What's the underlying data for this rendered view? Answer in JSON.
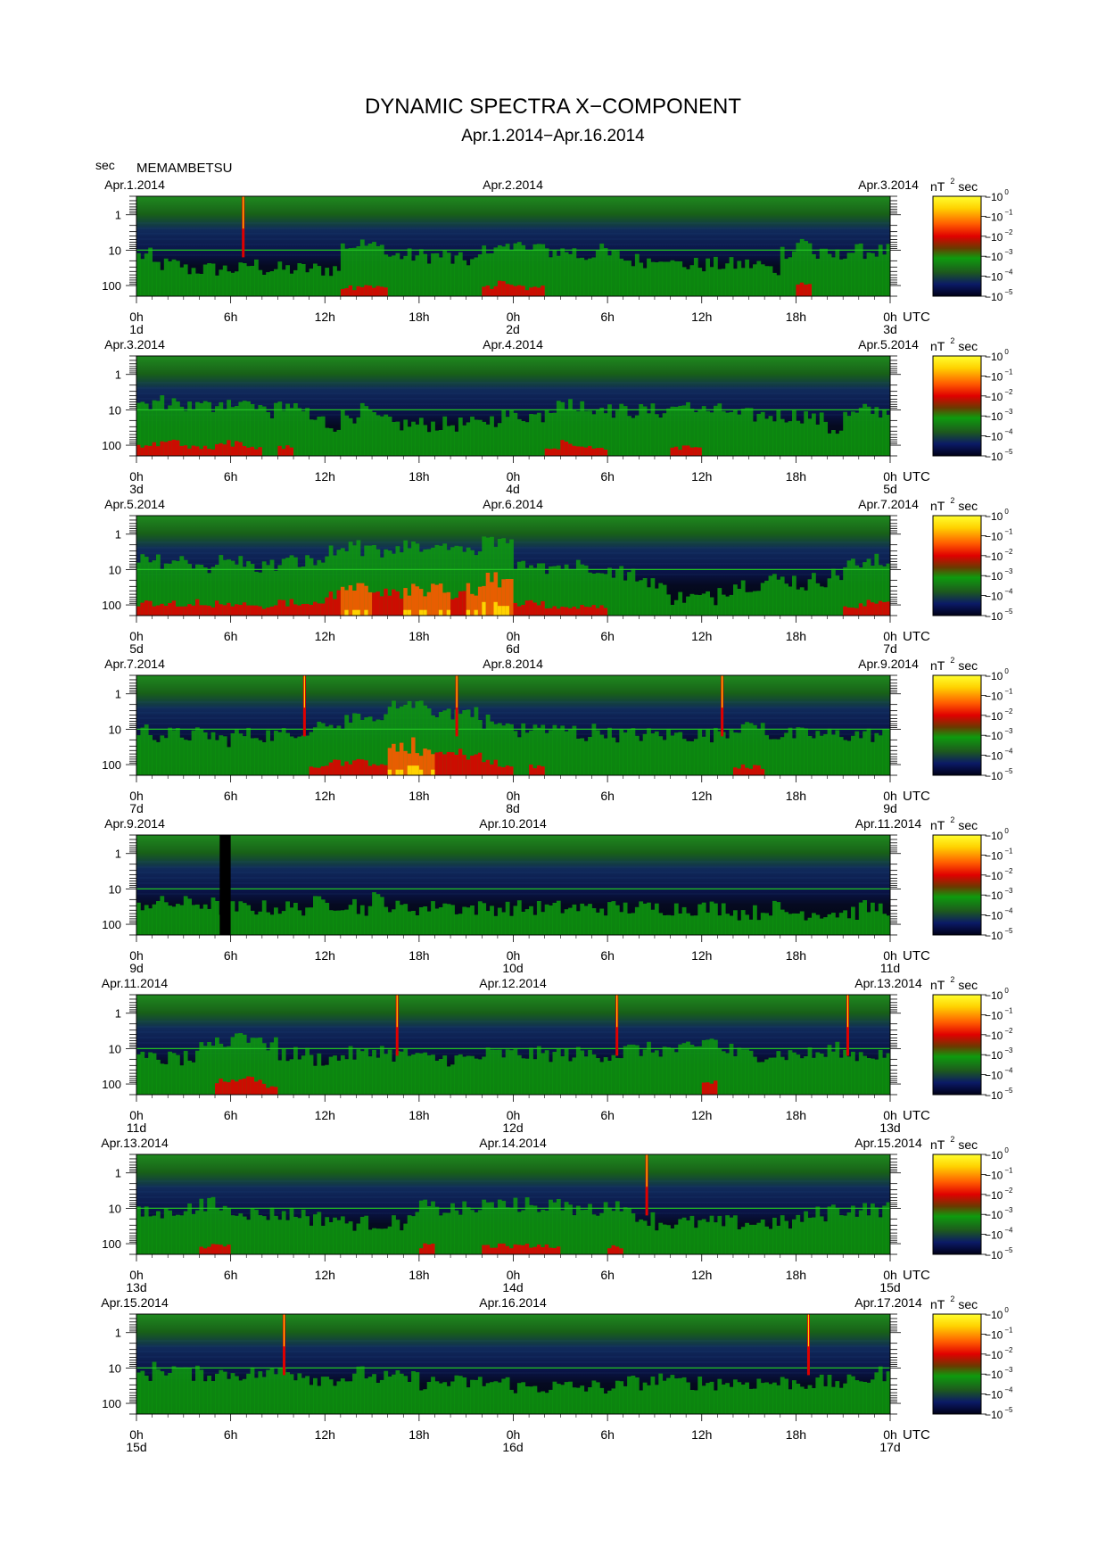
{
  "title": "DYNAMIC SPECTRA X−COMPONENT",
  "subtitle": "Apr.1.2014−Apr.16.2014",
  "station": "MEMAMBETSU",
  "yunit": "sec",
  "xunit": "UTC",
  "colorbar_unit": "nT",
  "colorbar_unit_exp": "2",
  "colorbar_unit_suffix": "sec",
  "y_tick_labels": [
    "1",
    "10",
    "100"
  ],
  "x_tick_labels": [
    "0h",
    "6h",
    "12h",
    "18h",
    "0h",
    "6h",
    "12h",
    "18h",
    "0h"
  ],
  "colorbar_labels": [
    {
      "base": "10",
      "exp": "0"
    },
    {
      "base": "10",
      "exp": "−1"
    },
    {
      "base": "10",
      "exp": "−2"
    },
    {
      "base": "10",
      "exp": "−3"
    },
    {
      "base": "10",
      "exp": "−4"
    },
    {
      "base": "10",
      "exp": "−5"
    }
  ],
  "colors": {
    "palette": [
      "#000018",
      "#0b1a66",
      "#1d5a1d",
      "#0e9b0e",
      "#e00000",
      "#ff5a00",
      "#ffd200",
      "#ffff30"
    ]
  },
  "chart_data": {
    "type": "heatmap",
    "title": "DYNAMIC SPECTRA X−COMPONENT",
    "subtitle": "Apr.1.2014−Apr.16.2014",
    "ylabel": "sec",
    "xlabel": "UTC",
    "y_scale": "log",
    "y_range_sec": [
      0.3,
      200
    ],
    "color_scale": "log",
    "color_range_nT2sec": [
      1e-05,
      1
    ],
    "panels": [
      {
        "dates": [
          "Apr.1.2014",
          "Apr.2.2014",
          "Apr.3.2014"
        ],
        "days": [
          "1d",
          "2d",
          "3d"
        ],
        "spikes_hours": [
          6.8
        ],
        "activity": [
          0.45,
          0.35,
          0.35,
          0.3,
          0.3,
          0.3,
          0.3,
          0.35,
          0.3,
          0.3,
          0.3,
          0.3,
          0.3,
          0.55,
          0.6,
          0.55,
          0.45,
          0.45,
          0.45,
          0.45,
          0.4,
          0.4,
          0.55,
          0.6,
          0.55,
          0.55,
          0.5,
          0.5,
          0.45,
          0.5,
          0.45,
          0.4,
          0.4,
          0.45,
          0.35,
          0.35,
          0.35,
          0.35,
          0.35,
          0.35,
          0.3,
          0.5,
          0.6,
          0.45,
          0.45,
          0.5,
          0.5,
          0.5
        ]
      },
      {
        "dates": [
          "Apr.3.2014",
          "Apr.4.2014",
          "Apr.5.2014"
        ],
        "days": [
          "3d",
          "4d",
          "5d"
        ],
        "spikes_hours": [],
        "activity": [
          0.55,
          0.6,
          0.6,
          0.55,
          0.55,
          0.6,
          0.6,
          0.55,
          0.5,
          0.55,
          0.5,
          0.4,
          0.35,
          0.45,
          0.5,
          0.4,
          0.35,
          0.35,
          0.35,
          0.35,
          0.35,
          0.35,
          0.4,
          0.45,
          0.45,
          0.45,
          0.55,
          0.6,
          0.55,
          0.55,
          0.5,
          0.5,
          0.5,
          0.5,
          0.55,
          0.55,
          0.5,
          0.5,
          0.45,
          0.45,
          0.45,
          0.45,
          0.45,
          0.4,
          0.3,
          0.45,
          0.5,
          0.5
        ]
      },
      {
        "dates": [
          "Apr.5.2014",
          "Apr.6.2014",
          "Apr.7.2014"
        ],
        "days": [
          "5d",
          "6d",
          "7d"
        ],
        "spikes_hours": [],
        "activity": [
          0.6,
          0.6,
          0.6,
          0.6,
          0.55,
          0.6,
          0.6,
          0.55,
          0.55,
          0.6,
          0.6,
          0.6,
          0.7,
          0.75,
          0.75,
          0.7,
          0.7,
          0.75,
          0.75,
          0.75,
          0.7,
          0.75,
          0.85,
          0.8,
          0.6,
          0.6,
          0.55,
          0.55,
          0.55,
          0.55,
          0.5,
          0.45,
          0.4,
          0.3,
          0.2,
          0.2,
          0.2,
          0.3,
          0.35,
          0.35,
          0.4,
          0.4,
          0.35,
          0.4,
          0.45,
          0.55,
          0.6,
          0.6
        ]
      },
      {
        "dates": [
          "Apr.7.2014",
          "Apr.8.2014",
          "Apr.9.2014"
        ],
        "days": [
          "7d",
          "8d",
          "9d"
        ],
        "spikes_hours": [
          10.7,
          20.4,
          37.3
        ],
        "activity": [
          0.5,
          0.45,
          0.45,
          0.45,
          0.45,
          0.4,
          0.45,
          0.45,
          0.45,
          0.45,
          0.5,
          0.55,
          0.6,
          0.6,
          0.6,
          0.6,
          0.75,
          0.8,
          0.75,
          0.7,
          0.7,
          0.7,
          0.6,
          0.55,
          0.5,
          0.55,
          0.5,
          0.5,
          0.45,
          0.5,
          0.45,
          0.45,
          0.45,
          0.45,
          0.45,
          0.45,
          0.45,
          0.5,
          0.55,
          0.55,
          0.45,
          0.45,
          0.45,
          0.45,
          0.45,
          0.45,
          0.45,
          0.45
        ]
      },
      {
        "dates": [
          "Apr.9.2014",
          "Apr.10.2014",
          "Apr.11.2014"
        ],
        "days": [
          "9d",
          "10d",
          "11d"
        ],
        "spikes_hours": [],
        "gap_hours": [
          5.3,
          6.0
        ],
        "activity": [
          0.35,
          0.35,
          0.35,
          0.35,
          0.35,
          0.3,
          0.3,
          0.3,
          0.3,
          0.3,
          0.3,
          0.35,
          0.35,
          0.35,
          0.3,
          0.4,
          0.3,
          0.3,
          0.3,
          0.35,
          0.3,
          0.3,
          0.3,
          0.3,
          0.3,
          0.3,
          0.3,
          0.3,
          0.3,
          0.3,
          0.3,
          0.3,
          0.3,
          0.3,
          0.3,
          0.3,
          0.3,
          0.3,
          0.25,
          0.25,
          0.3,
          0.25,
          0.25,
          0.25,
          0.25,
          0.25,
          0.3,
          0.3
        ]
      },
      {
        "dates": [
          "Apr.11.2014",
          "Apr.12.2014",
          "Apr.13.2014"
        ],
        "days": [
          "11d",
          "12d",
          "13d"
        ],
        "spikes_hours": [
          16.6,
          30.6,
          45.3
        ],
        "activity": [
          0.4,
          0.4,
          0.4,
          0.4,
          0.5,
          0.6,
          0.65,
          0.65,
          0.55,
          0.45,
          0.45,
          0.4,
          0.4,
          0.45,
          0.45,
          0.5,
          0.45,
          0.45,
          0.4,
          0.4,
          0.4,
          0.4,
          0.45,
          0.45,
          0.45,
          0.45,
          0.45,
          0.45,
          0.45,
          0.45,
          0.45,
          0.5,
          0.5,
          0.5,
          0.5,
          0.5,
          0.6,
          0.5,
          0.45,
          0.45,
          0.45,
          0.45,
          0.45,
          0.45,
          0.5,
          0.45,
          0.45,
          0.45
        ]
      },
      {
        "dates": [
          "Apr.13.2014",
          "Apr.14.2014",
          "Apr.15.2014"
        ],
        "days": [
          "13d",
          "14d",
          "15d"
        ],
        "spikes_hours": [
          32.5
        ],
        "activity": [
          0.45,
          0.45,
          0.5,
          0.5,
          0.55,
          0.55,
          0.5,
          0.45,
          0.45,
          0.45,
          0.45,
          0.4,
          0.4,
          0.35,
          0.35,
          0.35,
          0.35,
          0.4,
          0.55,
          0.5,
          0.5,
          0.5,
          0.55,
          0.55,
          0.55,
          0.55,
          0.55,
          0.5,
          0.5,
          0.5,
          0.55,
          0.45,
          0.4,
          0.35,
          0.35,
          0.35,
          0.35,
          0.35,
          0.35,
          0.35,
          0.35,
          0.35,
          0.4,
          0.45,
          0.5,
          0.5,
          0.5,
          0.5
        ]
      },
      {
        "dates": [
          "Apr.15.2014",
          "Apr.16.2014",
          "Apr.17.2014"
        ],
        "days": [
          "15d",
          "16d",
          "17d"
        ],
        "spikes_hours": [
          9.4,
          42.8
        ],
        "activity": [
          0.45,
          0.5,
          0.5,
          0.45,
          0.45,
          0.45,
          0.45,
          0.45,
          0.45,
          0.5,
          0.45,
          0.4,
          0.4,
          0.4,
          0.45,
          0.4,
          0.4,
          0.4,
          0.35,
          0.35,
          0.35,
          0.35,
          0.35,
          0.35,
          0.3,
          0.3,
          0.3,
          0.3,
          0.3,
          0.3,
          0.3,
          0.35,
          0.35,
          0.4,
          0.35,
          0.35,
          0.35,
          0.35,
          0.35,
          0.35,
          0.35,
          0.35,
          0.35,
          0.35,
          0.35,
          0.35,
          0.4,
          0.45
        ]
      }
    ]
  }
}
